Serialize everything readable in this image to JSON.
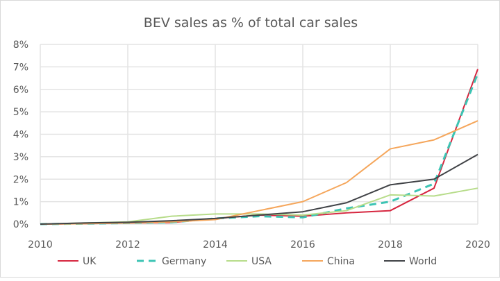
{
  "chart_data": {
    "type": "line",
    "title": "BEV sales as % of total car sales",
    "xlabel": "",
    "ylabel": "",
    "x": [
      2010,
      2011,
      2012,
      2013,
      2014,
      2015,
      2016,
      2017,
      2018,
      2019,
      2020
    ],
    "xlim": [
      2010,
      2020
    ],
    "ylim": [
      0,
      8
    ],
    "x_ticks": [
      "2010",
      "2012",
      "2014",
      "2016",
      "2018",
      "2020"
    ],
    "y_ticks": [
      "0%",
      "1%",
      "2%",
      "3%",
      "4%",
      "5%",
      "6%",
      "7%",
      "8%"
    ],
    "grid": true,
    "legend_position": "bottom",
    "series": [
      {
        "name": "UK",
        "color": "#d6263f",
        "dash": false,
        "values": [
          0,
          0.02,
          0.05,
          0.07,
          0.25,
          0.4,
          0.35,
          0.5,
          0.6,
          1.6,
          6.9
        ]
      },
      {
        "name": "Germany",
        "color": "#3cc4b4",
        "dash": true,
        "values": [
          0,
          0.02,
          0.05,
          0.08,
          0.25,
          0.35,
          0.3,
          0.7,
          1.0,
          1.8,
          6.7
        ]
      },
      {
        "name": "USA",
        "color": "#b7dc8a",
        "dash": false,
        "values": [
          0,
          0.05,
          0.1,
          0.35,
          0.45,
          0.45,
          0.4,
          0.6,
          1.3,
          1.25,
          1.6
        ]
      },
      {
        "name": "China",
        "color": "#f5a65b",
        "dash": false,
        "values": [
          0,
          0.02,
          0.05,
          0.1,
          0.2,
          0.6,
          1.0,
          1.85,
          3.35,
          3.75,
          4.6
        ]
      },
      {
        "name": "World",
        "color": "#404246",
        "dash": false,
        "values": [
          0,
          0.05,
          0.08,
          0.15,
          0.25,
          0.4,
          0.55,
          0.95,
          1.75,
          2.0,
          3.1
        ]
      }
    ]
  }
}
